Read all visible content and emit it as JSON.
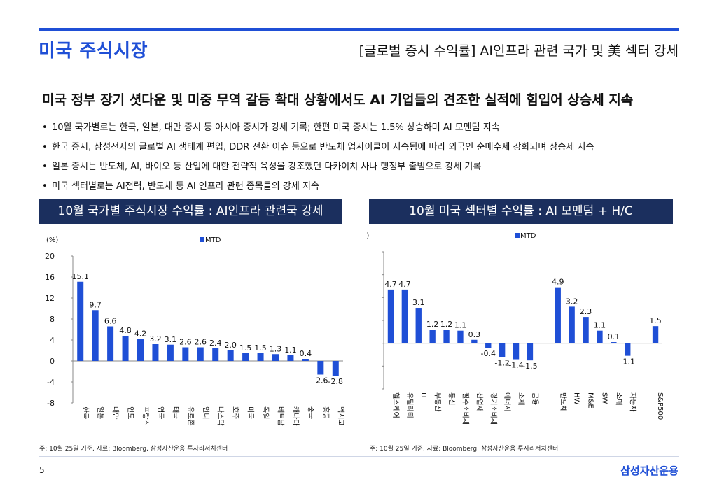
{
  "header": {
    "title": "미국 주식시장",
    "subtitle": "[글로벌 증시 수익률] AI인프라 관련 국가 및 美 섹터 강세"
  },
  "headline": "미국 정부 장기 셧다운 및 미중 무역 갈등 확대 상황에서도 AI 기업들의 견조한 실적에 힘입어 상승세 지속",
  "bullets": [
    "10월 국가별로는 한국, 일본, 대만 증시 등 아시아 증시가 강세 기록; 한편 미국 증시는 1.5% 상승하며 AI 모멘텀 지속",
    "한국 증시, 삼성전자의 글로벌 AI 생태계 편입, DDR 전환 이슈 등으로 반도체 업사이클이 지속됨에 따라 외국인 순매수세 강화되며 상승세 지속",
    "일본 증시는 반도체, AI, 바이오 등 산업에 대한 전략적 육성을 강조했던 다카이치 사나 행정부 출범으로 강세 기록",
    "미국 섹터별로는 AI전력, 반도체 등 AI 인프라 관련 종목들의 강세 지속"
  ],
  "bullet_glyph": "•",
  "panels": {
    "left_title": "10월 국가별 주식시장 수익률 : AI인프라 관련국 강세",
    "right_title": "10월 미국 섹터별 수익률 : AI 모멘텀 + H/C"
  },
  "footnotes": {
    "left": "주: 10월 25일 기준, 자료: Bloomberg, 삼성자산운용 투자리서치센터",
    "right": "주: 10월 25일 기준, 자료: Bloomberg, 삼성자산운용 투자리서치센터"
  },
  "footer": {
    "page_number": "5",
    "logo_text": "삼성자산운용"
  },
  "colors": {
    "accent": "#1f4fd6",
    "panel_bg": "#1b2f5e",
    "bar": "#1f4fd6"
  },
  "chart_data": [
    {
      "type": "bar",
      "ylabel": "(%)",
      "legend": "MTD",
      "legend_position": "top-center",
      "ylim": [
        -8,
        20
      ],
      "yticks": [
        -8,
        -4,
        0,
        4,
        8,
        12,
        16,
        20
      ],
      "categories": [
        "한국",
        "일본",
        "대만",
        "인도",
        "프랑스",
        "영국",
        "태국",
        "유로존",
        "인니",
        "나스닥",
        "호주",
        "미국",
        "독일",
        "베트남",
        "캐나다",
        "중국",
        "홍콩",
        "멕시코"
      ],
      "values": [
        15.1,
        9.7,
        6.6,
        4.8,
        4.2,
        3.2,
        3.1,
        2.6,
        2.6,
        2.4,
        2.0,
        1.5,
        1.5,
        1.3,
        1.1,
        0.4,
        -2.6,
        -2.8
      ],
      "labels": [
        "15.1",
        "9.7",
        "6.6",
        "4.8",
        "4.2",
        "3.2",
        "3.1",
        "2.6",
        "2.6",
        "2.4",
        "2.0",
        "1.5",
        "1.5",
        "1.3",
        "1.1",
        "0.4",
        "-2.6",
        "-2.8"
      ]
    },
    {
      "type": "bar",
      "ylabel": "(%)",
      "legend": "MTD",
      "legend_position": "top-center",
      "ylim": [
        -4,
        8
      ],
      "yticks": [
        -4,
        -2,
        0,
        2,
        4,
        6,
        8
      ],
      "categories": [
        "헬스케어",
        "유틸리티",
        "IT",
        "부동산",
        "통신",
        "필수소비재",
        "산업재",
        "경기소비재",
        "에너지",
        "소재",
        "금융",
        "반도체",
        "HW",
        "M&E",
        "SW",
        "소매",
        "자동차",
        "S&P500"
      ],
      "values": [
        4.7,
        4.7,
        3.1,
        1.2,
        1.2,
        1.1,
        0.3,
        -0.4,
        -1.2,
        -1.4,
        -1.5,
        4.9,
        3.2,
        2.3,
        1.1,
        0.1,
        -1.1,
        1.5
      ],
      "labels": [
        "4.7",
        "4.7",
        "3.1",
        "1.2",
        "1.2",
        "1.1",
        "0.3",
        "-0.4",
        "-1.2",
        "-1.4",
        "-1.5",
        "4.9",
        "3.2",
        "2.3",
        "1.1",
        "0.1",
        "-1.1",
        "1.5"
      ]
    }
  ]
}
